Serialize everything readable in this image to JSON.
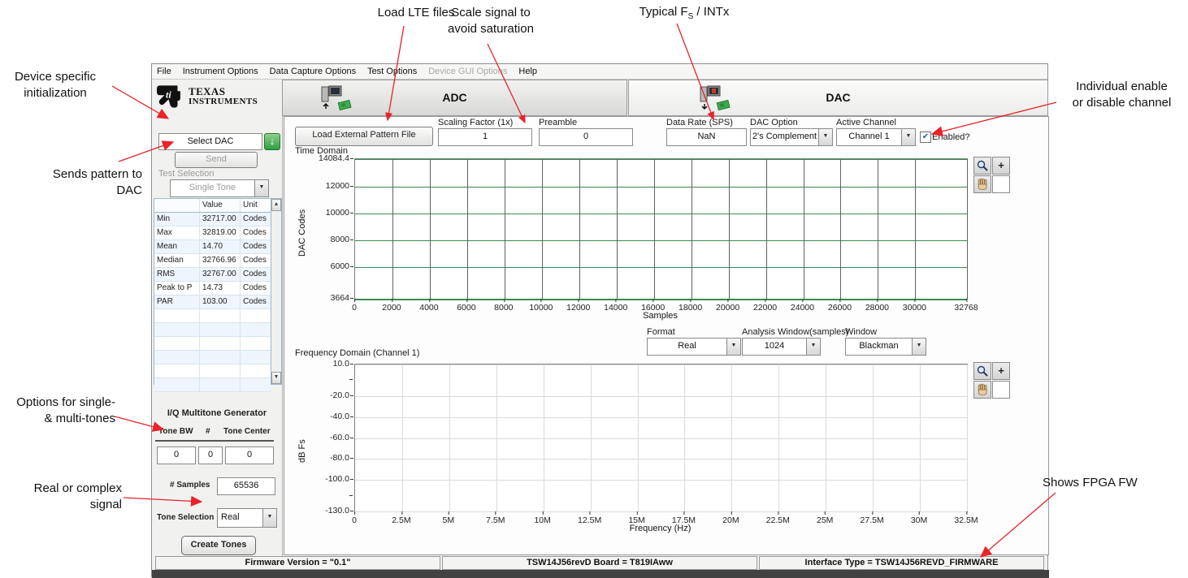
{
  "menu": {
    "items": [
      {
        "label": "File",
        "enabled": true
      },
      {
        "label": "Instrument Options",
        "enabled": true
      },
      {
        "label": "Data Capture Options",
        "enabled": true
      },
      {
        "label": "Test Options",
        "enabled": true
      },
      {
        "label": "Device GUI Options",
        "enabled": false
      },
      {
        "label": "Help",
        "enabled": true
      }
    ]
  },
  "tabs": {
    "adc": "ADC",
    "dac": "DAC"
  },
  "left_panel": {
    "logo_line1": "Texas",
    "logo_line2": "Instruments",
    "select_dac": "Select DAC",
    "send": "Send",
    "test_selection_label": "Test Selection",
    "test_selection_value": "Single Tone",
    "stats": {
      "headers": [
        "",
        "Value",
        "Unit"
      ],
      "rows": [
        {
          "name": "Min",
          "value": "32717.00",
          "unit": "Codes"
        },
        {
          "name": "Max",
          "value": "32819.00",
          "unit": "Codes"
        },
        {
          "name": "Mean",
          "value": "14.70",
          "unit": "Codes"
        },
        {
          "name": "Median",
          "value": "32766.96",
          "unit": "Codes"
        },
        {
          "name": "RMS",
          "value": "32767.00",
          "unit": "Codes"
        },
        {
          "name": "Peak to P",
          "value": "14.73",
          "unit": "Codes"
        },
        {
          "name": "PAR",
          "value": "103.00",
          "unit": "Codes"
        }
      ]
    },
    "multitone": {
      "title": "I/Q Multitone Generator",
      "col1": "Tone BW",
      "col2": "#",
      "col3": "Tone Center",
      "val1": "0",
      "val2": "0",
      "val3": "0",
      "samples_label": "# Samples",
      "samples_value": "65536",
      "tone_selection_label": "Tone Selection",
      "tone_selection_value": "Real",
      "create_button": "Create Tones"
    }
  },
  "toolbar": {
    "load_button": "Load External Pattern File",
    "scaling_label": "Scaling Factor (1x)",
    "scaling_value": "1",
    "preamble_label": "Preamble",
    "preamble_value": "0",
    "data_rate_label": "Data Rate (SPS)",
    "data_rate_value": "NaN",
    "dac_option_label": "DAC Option",
    "dac_option_value": "2's Complement",
    "active_channel_label": "Active Channel",
    "active_channel_value": "Channel 1",
    "enabled_label": "Enabled?"
  },
  "fft_controls": {
    "format_label": "Format",
    "format_value": "Real",
    "analysis_label": "Analysis Window(samples)",
    "analysis_value": "1024",
    "window_label": "Window",
    "window_value": "Blackman"
  },
  "status_bar": {
    "items": [
      "Firmware Version = \"0.1\"",
      "TSW14J56revD Board = T819IAww",
      "Interface Type = TSW14J56REVD_FIRMWARE"
    ]
  },
  "chart_data": [
    {
      "type": "line",
      "title": "Time Domain",
      "xlabel": "Samples",
      "ylabel": "DAC Codes",
      "xlim": [
        0,
        32768
      ],
      "ylim": [
        3664,
        14084.4
      ],
      "x_ticks": [
        {
          "v": 0,
          "label": "0"
        },
        {
          "v": 2000,
          "label": "2000"
        },
        {
          "v": 4000,
          "label": "4000"
        },
        {
          "v": 6000,
          "label": "6000"
        },
        {
          "v": 8000,
          "label": "8000"
        },
        {
          "v": 10000,
          "label": "10000"
        },
        {
          "v": 12000,
          "label": "12000"
        },
        {
          "v": 14000,
          "label": "14000"
        },
        {
          "v": 16000,
          "label": "16000"
        },
        {
          "v": 18000,
          "label": "18000"
        },
        {
          "v": 20000,
          "label": "20000"
        },
        {
          "v": 22000,
          "label": "22000"
        },
        {
          "v": 24000,
          "label": "24000"
        },
        {
          "v": 26000,
          "label": "26000"
        },
        {
          "v": 28000,
          "label": "28000"
        },
        {
          "v": 30000,
          "label": "30000"
        },
        {
          "v": 32768,
          "label": "32768"
        }
      ],
      "y_ticks": [
        {
          "v": 14084.4,
          "label": "14084.4"
        },
        {
          "v": 12000,
          "label": "12000"
        },
        {
          "v": 10000,
          "label": "10000"
        },
        {
          "v": 8000,
          "label": "8000"
        },
        {
          "v": 6000,
          "label": "6000"
        },
        {
          "v": 3664,
          "label": "3664"
        }
      ],
      "series": [],
      "grid": {
        "h_color": "#3c8a50",
        "v_color": "#606060"
      }
    },
    {
      "type": "line",
      "title": "Frequency Domain (Channel 1)",
      "xlabel": "Frequency (Hz)",
      "ylabel": "dB Fs",
      "xlim": [
        0,
        32500000
      ],
      "ylim": [
        -130,
        10
      ],
      "x_ticks": [
        {
          "v": 0,
          "label": "0"
        },
        {
          "v": 2500000,
          "label": "2.5M"
        },
        {
          "v": 5000000,
          "label": "5M"
        },
        {
          "v": 7500000,
          "label": "7.5M"
        },
        {
          "v": 10000000,
          "label": "10M"
        },
        {
          "v": 12500000,
          "label": "12.5M"
        },
        {
          "v": 15000000,
          "label": "15M"
        },
        {
          "v": 17500000,
          "label": "17.5M"
        },
        {
          "v": 20000000,
          "label": "20M"
        },
        {
          "v": 22500000,
          "label": "22.5M"
        },
        {
          "v": 25000000,
          "label": "25M"
        },
        {
          "v": 27500000,
          "label": "27.5M"
        },
        {
          "v": 30000000,
          "label": "30M"
        },
        {
          "v": 32500000,
          "label": "32.5M"
        }
      ],
      "y_ticks": [
        {
          "v": 10,
          "label": "10.0"
        },
        {
          "v": -20,
          "label": "-20.0"
        },
        {
          "v": -40,
          "label": "-40.0"
        },
        {
          "v": -60,
          "label": "-60.0"
        },
        {
          "v": -80,
          "label": "-80.0"
        },
        {
          "v": -100,
          "label": "-100.0"
        },
        {
          "v": -130,
          "label": "-130.0"
        }
      ],
      "y_minor": [
        -5,
        -115
      ],
      "series": [],
      "grid": {
        "h_color": "#dadada",
        "v_color": "#dadada"
      }
    }
  ],
  "annotations": {
    "load_lte": "Load LTE files",
    "scale_signal_1": "Scale signal to",
    "scale_signal_2": "avoid saturation",
    "typical_fs": {
      "pre": "Typical F",
      "sub": "S",
      "post": " / INTx"
    },
    "device_init_1": "Device specific",
    "device_init_2": "initialization",
    "sends_pattern_1": "Sends pattern to",
    "sends_pattern_2": "DAC",
    "options_tones_1": "Options for single-",
    "options_tones_2": "& multi-tones",
    "real_complex_1": "Real or complex",
    "real_complex_2": "signal",
    "individual_enable_1": "Individual enable",
    "individual_enable_2": "or disable channel",
    "shows_fpga": "Shows FPGA FW"
  },
  "icons": {
    "dropdown_arrow": "▼",
    "scroll_up": "▲",
    "scroll_down": "▼",
    "check": "✔",
    "download_arrow": "↓",
    "zoom_plus": "+"
  },
  "colors": {
    "annotation_red": "#e8232a",
    "grid_green": "#3c8a50",
    "grid_dark": "#606060",
    "grid_light": "#dadada",
    "chip_green": "#3faa4f"
  }
}
